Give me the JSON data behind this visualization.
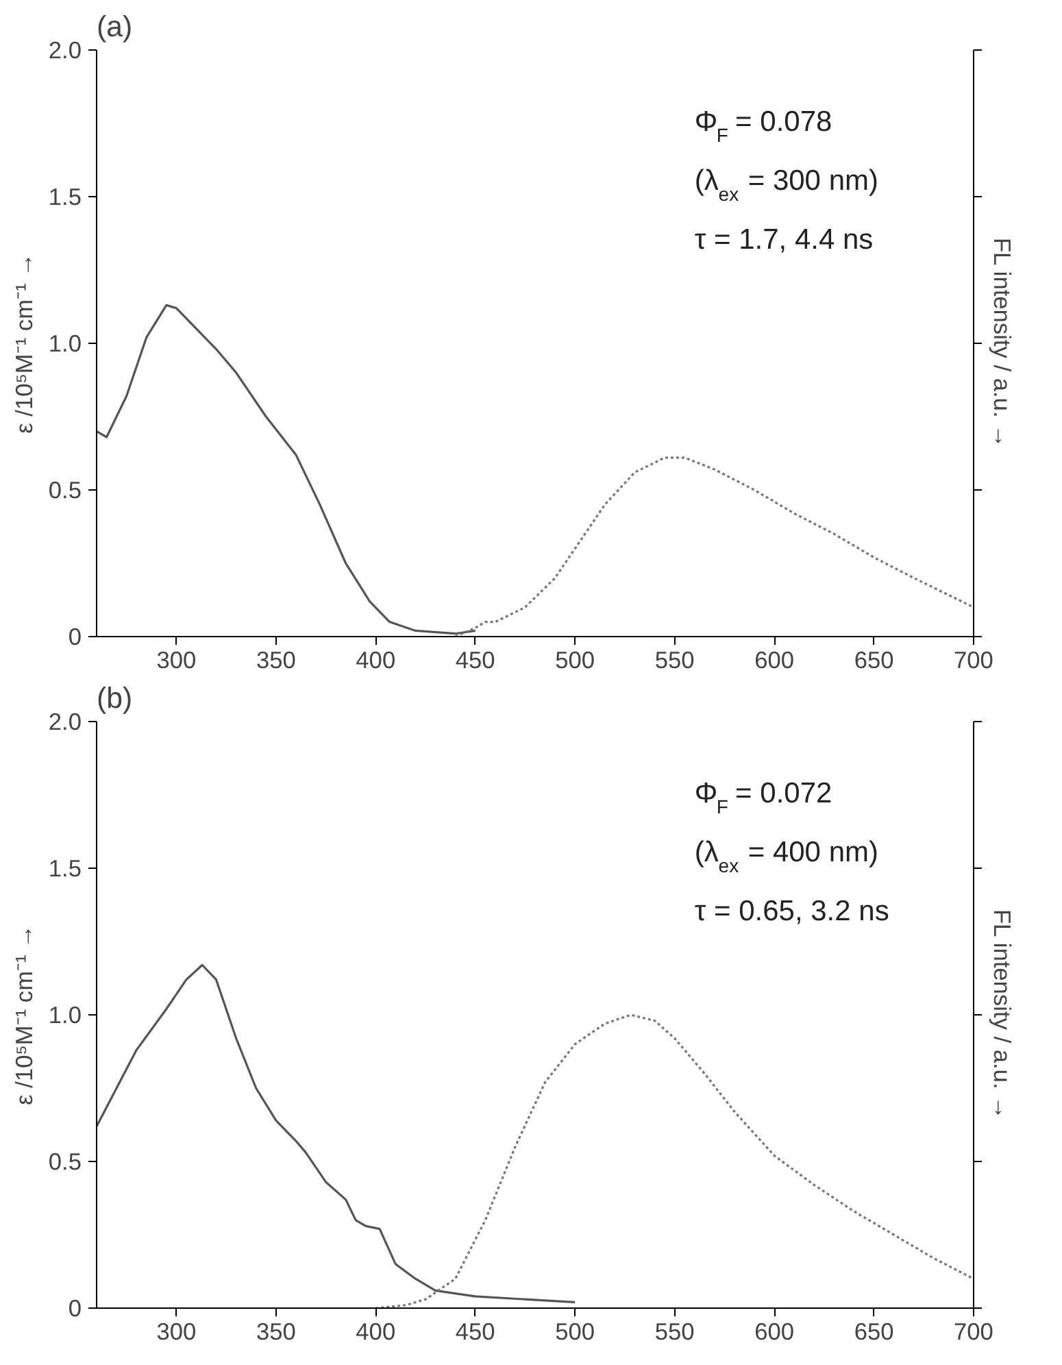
{
  "chart_data": [
    {
      "type": "line",
      "title": "(a)",
      "xlim": [
        260,
        700
      ],
      "xticks": [
        300,
        350,
        400,
        450,
        500,
        550,
        600,
        650,
        700
      ],
      "ylim": [
        0,
        2
      ],
      "yticks": [
        0,
        {
          "value": 0.5,
          "label": "0.5"
        },
        {
          "value": 1,
          "label": "1.0"
        },
        {
          "value": 1.5,
          "label": "1.5"
        },
        {
          "value": 2,
          "label": "2.0"
        }
      ],
      "ylabel": "ε /10⁵M⁻¹ cm⁻¹ →",
      "y2label": "FL intensity / a.u. →",
      "grid": false,
      "annotations": [
        "Φ$_{F}$ = 0.078",
        "(λ$_{ex}$ = 300 nm)",
        "τ = 1.7, 4.4 ns"
      ],
      "series": [
        {
          "color": "#555555",
          "line_style": "solid",
          "x": [
            260,
            265,
            275,
            285,
            295,
            300,
            310,
            320,
            330,
            345,
            360,
            372,
            385,
            397,
            407,
            420,
            440,
            450
          ],
          "values": [
            0.7,
            0.68,
            0.82,
            1.02,
            1.13,
            1.12,
            1.05,
            0.98,
            0.9,
            0.75,
            0.62,
            0.45,
            0.25,
            0.12,
            0.05,
            0.02,
            0.01,
            0.02
          ]
        },
        {
          "color": "#777777",
          "line_style": "dotted",
          "x": [
            440,
            450,
            455,
            460,
            475,
            490,
            500,
            515,
            530,
            545,
            555,
            570,
            590,
            610,
            630,
            650,
            670,
            700
          ],
          "values": [
            0.0,
            0.03,
            0.05,
            0.05,
            0.1,
            0.2,
            0.3,
            0.45,
            0.56,
            0.61,
            0.61,
            0.57,
            0.5,
            0.42,
            0.35,
            0.27,
            0.2,
            0.1
          ]
        }
      ]
    },
    {
      "type": "line",
      "title": "(b)",
      "xlim": [
        260,
        700
      ],
      "xticks": [
        300,
        350,
        400,
        450,
        500,
        550,
        600,
        650,
        700
      ],
      "ylim": [
        0,
        2
      ],
      "yticks": [
        0,
        {
          "value": 0.5,
          "label": "0.5"
        },
        {
          "value": 1,
          "label": "1.0"
        },
        {
          "value": 1.5,
          "label": "1.5"
        },
        {
          "value": 2,
          "label": "2.0"
        }
      ],
      "ylabel": "ε /10⁵M⁻¹ cm⁻¹ →",
      "y2label": "FL intensity / a.u. →",
      "grid": false,
      "annotations": [
        "Φ$_{F}$ = 0.072",
        "(λ$_{ex}$ = 400 nm)",
        "τ = 0.65, 3.2 ns"
      ],
      "series": [
        {
          "color": "#555555",
          "line_style": "solid",
          "x": [
            260,
            270,
            280,
            295,
            305,
            313,
            320,
            330,
            340,
            350,
            360,
            365,
            375,
            385,
            390,
            395,
            402,
            410,
            420,
            430,
            450,
            475,
            500
          ],
          "values": [
            0.62,
            0.75,
            0.88,
            1.02,
            1.12,
            1.17,
            1.12,
            0.92,
            0.75,
            0.64,
            0.57,
            0.53,
            0.43,
            0.37,
            0.3,
            0.28,
            0.27,
            0.15,
            0.1,
            0.06,
            0.04,
            0.03,
            0.02
          ]
        },
        {
          "color": "#777777",
          "line_style": "dotted",
          "x": [
            400,
            415,
            425,
            440,
            455,
            470,
            485,
            500,
            515,
            528,
            540,
            550,
            565,
            580,
            600,
            620,
            640,
            660,
            680,
            700
          ],
          "values": [
            0.0,
            0.01,
            0.03,
            0.1,
            0.3,
            0.55,
            0.77,
            0.9,
            0.97,
            1.0,
            0.98,
            0.92,
            0.8,
            0.67,
            0.52,
            0.42,
            0.33,
            0.25,
            0.17,
            0.1
          ]
        }
      ]
    }
  ]
}
